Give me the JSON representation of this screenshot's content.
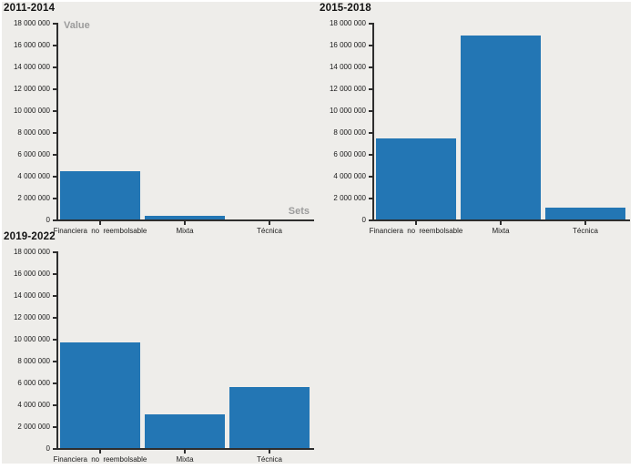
{
  "colors": {
    "page_background": "#ffffff",
    "canvas_background": "#eeedea",
    "bar": "#2376b4",
    "axis": "#2e2e2e",
    "text": "#1a1a1a",
    "title": "#141414",
    "axis_title": "#9b9b9b"
  },
  "axis_titles": {
    "ylabel": "Value",
    "xlabel": "Sets"
  },
  "chart_data": [
    {
      "type": "bar",
      "title": "2011-2014",
      "categories": [
        "Financiera no reembolsable",
        "Mixta",
        "Técnica"
      ],
      "values": [
        4450000,
        300000,
        0
      ],
      "ylabel": "Value",
      "xlabel": "Sets",
      "ylim": [
        0,
        18000000
      ],
      "ytick_step": 2000000,
      "ytick_labels": [
        "18 000 000",
        "16 000 000",
        "14 000 000",
        "12 000 000",
        "10 000 000",
        "8 000 000",
        "6 000 000",
        "4 000 000",
        "2 000 000",
        "0"
      ],
      "grid": false,
      "legend": "none"
    },
    {
      "type": "bar",
      "title": "2015-2018",
      "categories": [
        "Financiera no reembolsable",
        "Mixta",
        "Técnica"
      ],
      "values": [
        7400000,
        16800000,
        1050000
      ],
      "ylabel": "",
      "xlabel": "",
      "ylim": [
        0,
        18000000
      ],
      "ytick_step": 2000000,
      "ytick_labels": [
        "18 000 000",
        "16 000 000",
        "14 000 000",
        "12 000 000",
        "10 000 000",
        "8 000 000",
        "6 000 000",
        "4 000 000",
        "2 000 000",
        "0"
      ],
      "grid": false,
      "legend": "none"
    },
    {
      "type": "bar",
      "title": "2019-2022",
      "categories": [
        "Financiera no reembolsable",
        "Mixta",
        "Técnica"
      ],
      "values": [
        9700000,
        3100000,
        5600000
      ],
      "ylabel": "",
      "xlabel": "",
      "ylim": [
        0,
        18000000
      ],
      "ytick_step": 2000000,
      "ytick_labels": [
        "18 000 000",
        "16 000 000",
        "14 000 000",
        "12 000 000",
        "10 000 000",
        "8 000 000",
        "6 000 000",
        "4 000 000",
        "2 000 000",
        "0"
      ],
      "grid": false,
      "legend": "none"
    }
  ]
}
